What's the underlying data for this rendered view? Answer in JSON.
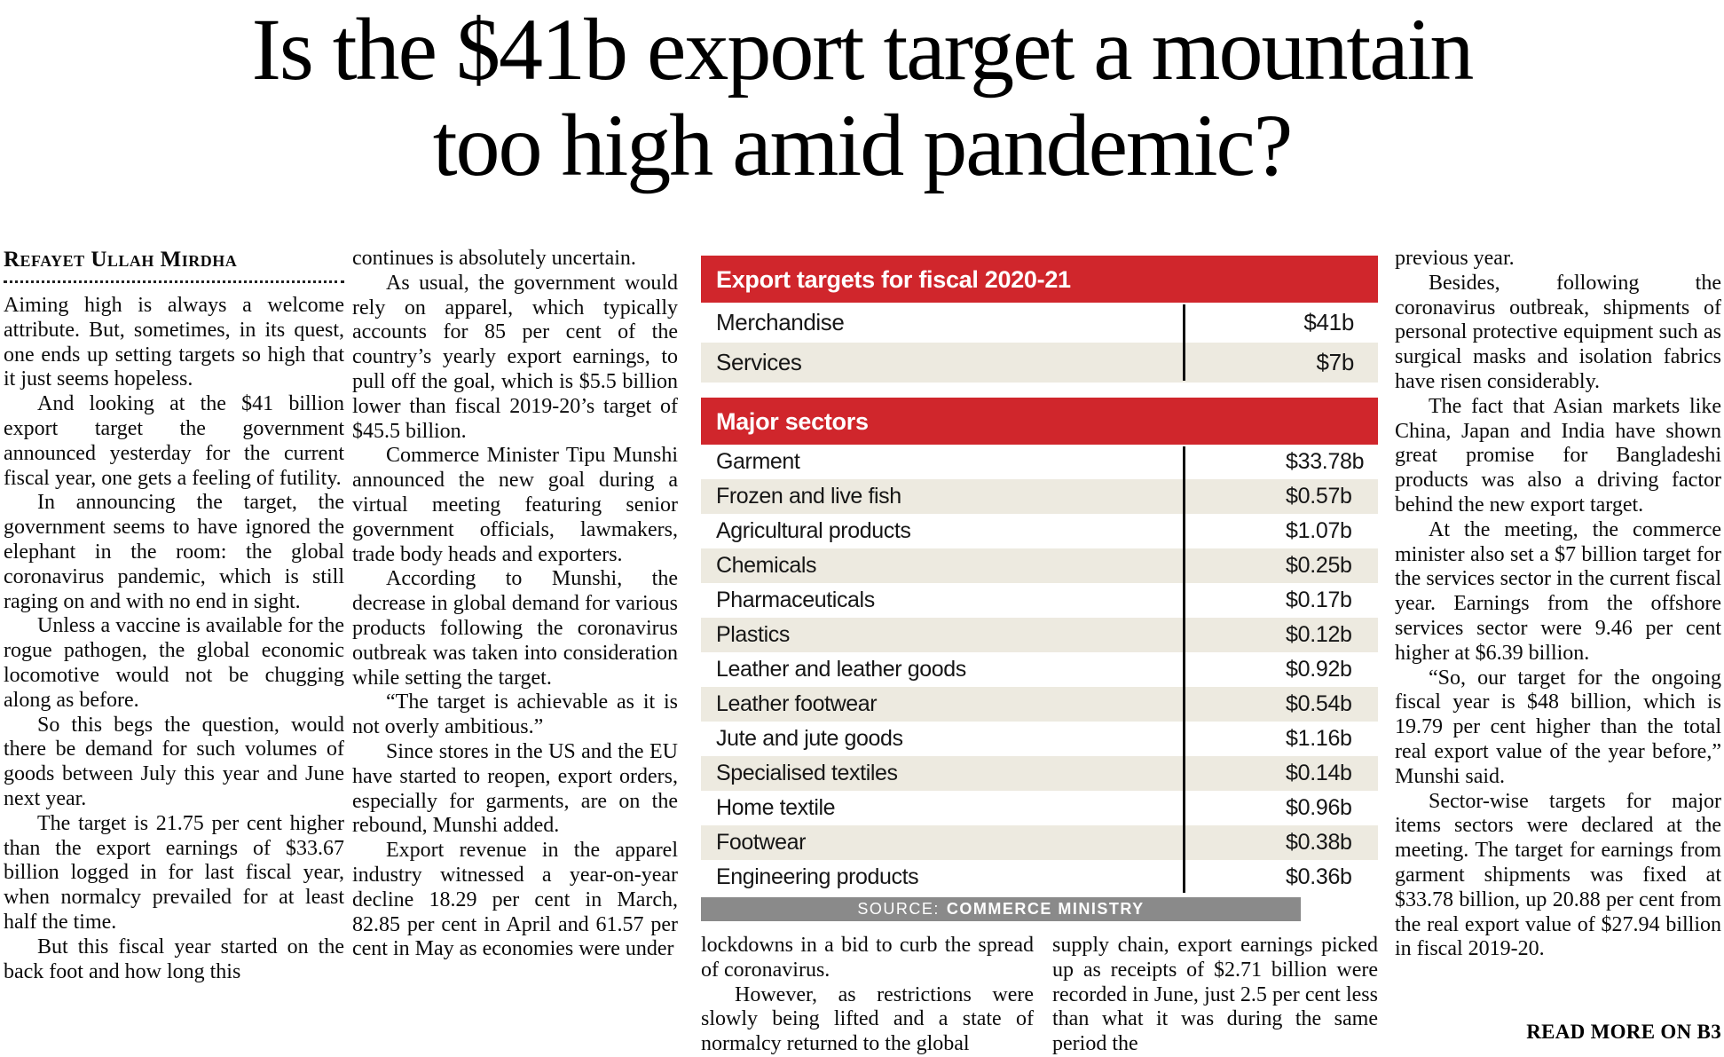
{
  "headline": {
    "line1": "Is the $41b export target a mountain",
    "line2": "too high amid pandemic?"
  },
  "byline": "Refayet Ullah Mirdha",
  "read_more": "READ MORE ON B3",
  "columns": {
    "col1": [
      "Aiming high is always a welcome attribute. But, sometimes, in its quest, one ends up setting targets so high that it just seems hopeless.",
      "And looking at the $41 billion export target the government announced yesterday for the current fiscal year, one gets a feeling of futility.",
      "In announcing the target, the government seems to have ignored the elephant in the room: the global coronavirus pandemic, which is still raging on and with no end in sight.",
      "Unless a vaccine is available for the rogue pathogen, the global economic locomotive would not be chugging along as before.",
      "So this begs the question, would there be demand for such volumes of goods between July this year and June next year.",
      "The target is 21.75 per cent higher than the export earnings of $33.67 billion logged in for last fiscal year, when normalcy prevailed for at least half the time.",
      "But this fiscal year started on the back foot and how long this"
    ],
    "col2": [
      "continues is absolutely uncertain.",
      "As usual, the government would rely on apparel, which typically accounts for 85 per cent of the country’s yearly export earnings, to pull off the goal, which is $5.5 billion lower than fiscal 2019-20’s target of $45.5 billion.",
      "Commerce Minister Tipu Munshi announced the new goal during a virtual meeting featuring senior government officials, lawmakers, trade body heads and exporters.",
      "According to Munshi, the decrease in global demand for various products following the coronavirus outbreak was taken into consideration while setting the target.",
      "“The target is achievable as it is not overly ambitious.”",
      "Since stores in the US and the EU have started to reopen, export orders, especially for garments, are on the rebound, Munshi added.",
      "Export revenue in the apparel industry witnessed a year-on-year decline 18.29 per cent in March, 82.85 per cent in April and 61.57 per cent in May as economies were under"
    ],
    "col3": [
      "lockdowns in a bid to curb the spread of coronavirus.",
      "However, as restrictions were slowly being lifted and a state of normalcy returned to the global"
    ],
    "col4": [
      "supply chain, export earnings picked up as receipts of $2.71 billion were recorded in June, just 2.5 per cent less than what it was during the same period the"
    ],
    "col5": [
      "previous year.",
      "Besides, following the coronavirus outbreak, shipments of personal protective equipment such as surgical masks and isolation fabrics have risen considerably.",
      "The fact that Asian markets like China, Japan and India have shown great promise for Bangladeshi products was also a driving factor behind the new export target.",
      "At the meeting, the commerce minister also set a $7 billion target for the services sector in the current fiscal year. Earnings from the offshore services sector were 9.46 per cent higher at $6.39 billion.",
      "“So, our target for the ongoing fiscal year is $48 billion, which is 19.79 per cent higher than the total real export value of the year before,” Munshi said.",
      "Sector-wise targets for major items sectors were declared at the meeting. The target for earnings from garment shipments was fixed at $33.78 billion, up 20.88 per cent from the real export value of $27.94 billion in fiscal 2019-20."
    ]
  },
  "infographic": {
    "colors": {
      "header_red": "#d0262c",
      "row_alt_beige": "#edeae0",
      "source_gray": "#8a8a8a"
    },
    "tables": [
      {
        "title": "Export targets for fiscal 2020-21",
        "rows": [
          {
            "label": "Merchandise",
            "value": "$41b"
          },
          {
            "label": "Services",
            "value": "$7b"
          }
        ]
      },
      {
        "title": "Major sectors",
        "rows": [
          {
            "label": "Garment",
            "value": "$33.78b"
          },
          {
            "label": "Frozen and live fish",
            "value": "$0.57b"
          },
          {
            "label": "Agricultural products",
            "value": "$1.07b"
          },
          {
            "label": "Chemicals",
            "value": "$0.25b"
          },
          {
            "label": "Pharmaceuticals",
            "value": "$0.17b"
          },
          {
            "label": "Plastics",
            "value": "$0.12b"
          },
          {
            "label": "Leather and leather goods",
            "value": "$0.92b"
          },
          {
            "label": "Leather footwear",
            "value": "$0.54b"
          },
          {
            "label": "Jute and jute goods",
            "value": "$1.16b"
          },
          {
            "label": "Specialised textiles",
            "value": "$0.14b"
          },
          {
            "label": "Home textile",
            "value": "$0.96b"
          },
          {
            "label": "Footwear",
            "value": "$0.38b"
          },
          {
            "label": "Engineering products",
            "value": "$0.36b"
          }
        ]
      }
    ],
    "source_prefix": "SOURCE:",
    "source_name": "COMMERCE MINISTRY"
  }
}
